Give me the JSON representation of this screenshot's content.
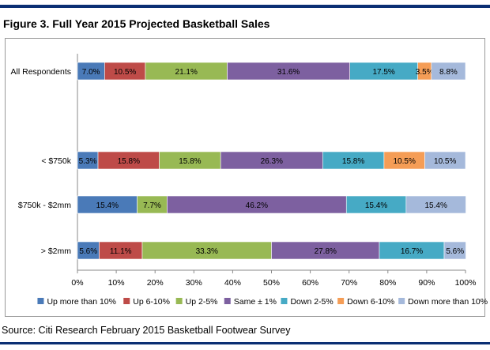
{
  "figure_title": "Figure 3. Full Year 2015 Projected Basketball Sales",
  "source": "Source: Citi Research February 2015 Basketball Footwear Survey",
  "chart_data": {
    "type": "bar",
    "orientation": "horizontal",
    "stacked": "percent",
    "title": "",
    "categories": [
      "All Respondents",
      "< $750k",
      "$750k - $2mm",
      "> $2mm"
    ],
    "series": [
      {
        "name": "Up more than 10%",
        "color": "#4a7ab8",
        "values": [
          7.0,
          5.3,
          15.4,
          5.6
        ],
        "labels": [
          "7.0%",
          "5.3%",
          "15.4%",
          "5.6%"
        ]
      },
      {
        "name": "Up 6-10%",
        "color": "#be4b48",
        "values": [
          10.5,
          15.8,
          0,
          11.1
        ],
        "labels": [
          "10.5%",
          "15.8%",
          "",
          "11.1%"
        ]
      },
      {
        "name": "Up 2-5%",
        "color": "#98b954",
        "values": [
          21.1,
          15.8,
          7.7,
          33.3
        ],
        "labels": [
          "21.1%",
          "15.8%",
          "7.7%",
          "33.3%"
        ]
      },
      {
        "name": "Same ± 1%",
        "color": "#7d60a0",
        "values": [
          31.6,
          26.3,
          46.2,
          27.8
        ],
        "labels": [
          "31.6%",
          "26.3%",
          "46.2%",
          "27.8%"
        ]
      },
      {
        "name": "Down 2-5%",
        "color": "#46aac5",
        "values": [
          17.5,
          15.8,
          15.4,
          16.7
        ],
        "labels": [
          "17.5%",
          "15.8%",
          "15.4%",
          "16.7%"
        ]
      },
      {
        "name": "Down 6-10%",
        "color": "#f59d56",
        "values": [
          3.5,
          10.5,
          0,
          0
        ],
        "labels": [
          "3.5%",
          "10.5%",
          "",
          ""
        ]
      },
      {
        "name": "Down more than 10%",
        "color": "#a5b9db",
        "values": [
          8.8,
          10.5,
          15.4,
          5.6
        ],
        "labels": [
          "8.8%",
          "10.5%",
          "15.4%",
          "5.6%"
        ]
      }
    ],
    "x_ticks": [
      "0%",
      "10%",
      "20%",
      "30%",
      "40%",
      "50%",
      "60%",
      "70%",
      "80%",
      "90%",
      "100%"
    ],
    "xlim": [
      0,
      100
    ],
    "xlabel": "",
    "ylabel": "",
    "grid": false,
    "legend_position": "bottom"
  }
}
